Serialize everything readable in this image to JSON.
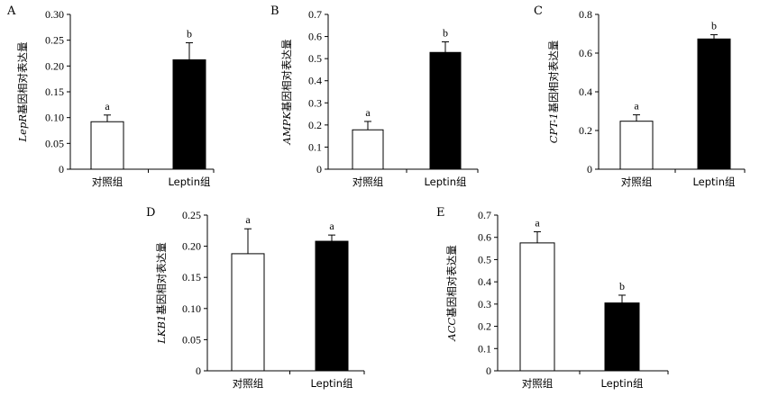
{
  "chart_data": [
    {
      "panel": "A",
      "type": "bar",
      "gene": "LepR",
      "ylabel_suffix": "基因相对表达量",
      "categories": [
        "对照组",
        "Leptin组"
      ],
      "values": [
        0.092,
        0.212
      ],
      "errors": [
        0.013,
        0.033
      ],
      "significance": [
        "a",
        "b"
      ],
      "ylim": [
        0,
        0.3
      ],
      "yticks": [
        0,
        0.05,
        0.1,
        0.15,
        0.2,
        0.25,
        0.3
      ],
      "ytick_labels": [
        "0",
        "0.05",
        "0.10",
        "0.15",
        "0.20",
        "0.25",
        "0.30"
      ],
      "bar_fills": [
        "#ffffff",
        "#000000"
      ]
    },
    {
      "panel": "B",
      "type": "bar",
      "gene": "AMPK",
      "ylabel_suffix": "基因相对表达量",
      "categories": [
        "对照组",
        "Leptin组"
      ],
      "values": [
        0.178,
        0.528
      ],
      "errors": [
        0.038,
        0.048
      ],
      "significance": [
        "a",
        "b"
      ],
      "ylim": [
        0,
        0.7
      ],
      "yticks": [
        0,
        0.1,
        0.2,
        0.3,
        0.4,
        0.5,
        0.6,
        0.7
      ],
      "ytick_labels": [
        "0",
        "0.1",
        "0.2",
        "0.3",
        "0.4",
        "0.5",
        "0.6",
        "0.7"
      ],
      "bar_fills": [
        "#ffffff",
        "#000000"
      ]
    },
    {
      "panel": "C",
      "type": "bar",
      "gene": "CPT-1",
      "ylabel_suffix": "基因相对表达量",
      "categories": [
        "对照组",
        "Leptin组"
      ],
      "values": [
        0.248,
        0.673
      ],
      "errors": [
        0.033,
        0.022
      ],
      "significance": [
        "a",
        "b"
      ],
      "ylim": [
        0,
        0.8
      ],
      "yticks": [
        0,
        0.2,
        0.4,
        0.6,
        0.8
      ],
      "ytick_labels": [
        "0",
        "0.2",
        "0.4",
        "0.6",
        "0.8"
      ],
      "bar_fills": [
        "#ffffff",
        "#000000"
      ]
    },
    {
      "panel": "D",
      "type": "bar",
      "gene": "LKB1",
      "ylabel_suffix": "基因相对表达量",
      "categories": [
        "对照组",
        "Leptin组"
      ],
      "values": [
        0.188,
        0.208
      ],
      "errors": [
        0.04,
        0.01
      ],
      "significance": [
        "a",
        "a"
      ],
      "ylim": [
        0,
        0.25
      ],
      "yticks": [
        0,
        0.05,
        0.1,
        0.15,
        0.2,
        0.25
      ],
      "ytick_labels": [
        "0",
        "0.05",
        "0.10",
        "0.15",
        "0.20",
        "0.25"
      ],
      "bar_fills": [
        "#ffffff",
        "#000000"
      ]
    },
    {
      "panel": "E",
      "type": "bar",
      "gene": "ACC",
      "ylabel_suffix": "基因相对表达量",
      "categories": [
        "对照组",
        "Leptin组"
      ],
      "values": [
        0.575,
        0.305
      ],
      "errors": [
        0.05,
        0.035
      ],
      "significance": [
        "a",
        "b"
      ],
      "ylim": [
        0,
        0.7
      ],
      "yticks": [
        0,
        0.1,
        0.2,
        0.3,
        0.4,
        0.5,
        0.6,
        0.7
      ],
      "ytick_labels": [
        "0",
        "0.1",
        "0.2",
        "0.3",
        "0.4",
        "0.5",
        "0.6",
        "0.7"
      ],
      "bar_fills": [
        "#ffffff",
        "#000000"
      ]
    }
  ]
}
